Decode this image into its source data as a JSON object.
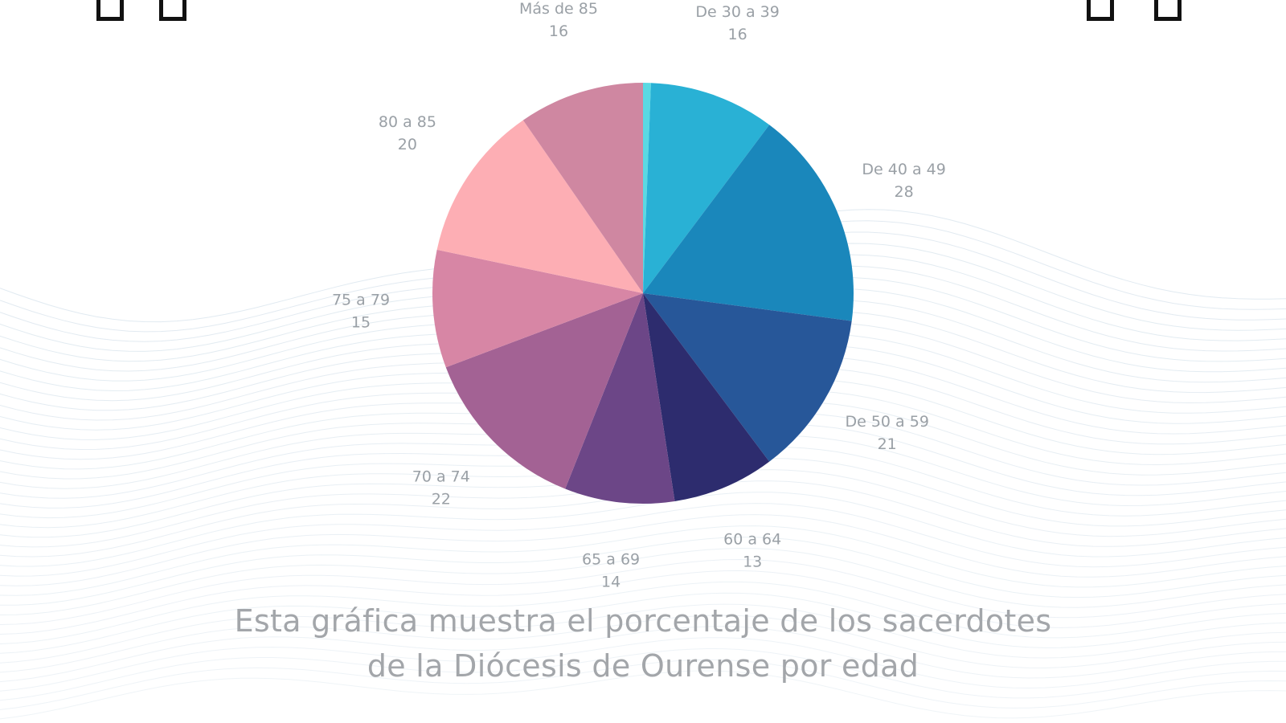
{
  "chart_data": {
    "type": "pie",
    "categories": [
      "De 30 a 39",
      "De 40 a 49",
      "De 50 a 59",
      "60 a 64",
      "65 a 69",
      "70 a 74",
      "75 a 79",
      "80 a 85",
      "Más de 85"
    ],
    "values": [
      16,
      28,
      21,
      13,
      14,
      22,
      15,
      20,
      16
    ],
    "thin_slice_value": 1,
    "colors": [
      "#29b1d5",
      "#1a87bb",
      "#275799",
      "#2d2c6e",
      "#6c4687",
      "#a36294",
      "#d786a5",
      "#fdaeb4",
      "#cf87a1"
    ],
    "thin_slice_color": "#5ad9e3",
    "label_color": "#9aa0a6",
    "title": ""
  },
  "caption": {
    "line1": "Esta gráfica muestra el porcentaje de los sacerdotes",
    "line2": "de la Diócesis de Ourense por edad",
    "color": "#a3a6aa"
  },
  "decoration": {
    "wave_color": "#c9d9e5",
    "corner_box_color": "#111111"
  }
}
